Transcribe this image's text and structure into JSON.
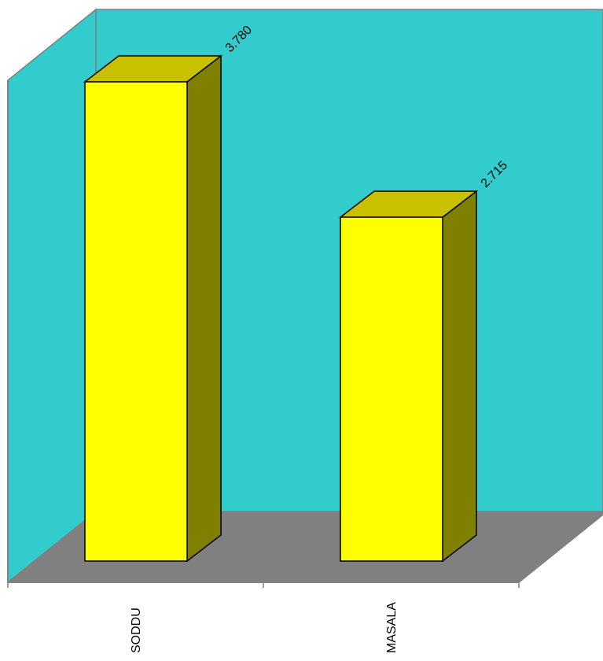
{
  "chart_data": {
    "type": "bar",
    "style": "3d",
    "categories": [
      "SODDU",
      "MASALA"
    ],
    "values": [
      3.78,
      2.715
    ],
    "value_labels": [
      "3.780",
      "2.715"
    ],
    "title": "",
    "xlabel": "",
    "ylabel": "",
    "ylim": [
      0,
      4.2
    ],
    "grid": false,
    "legend": "none",
    "colors": {
      "wall": "#33cccc",
      "floor": "#808080",
      "bar_front": "#ffff00",
      "bar_top": "#c8c000",
      "bar_side": "#808000",
      "outline": "#000000",
      "axis": "#808080"
    }
  }
}
